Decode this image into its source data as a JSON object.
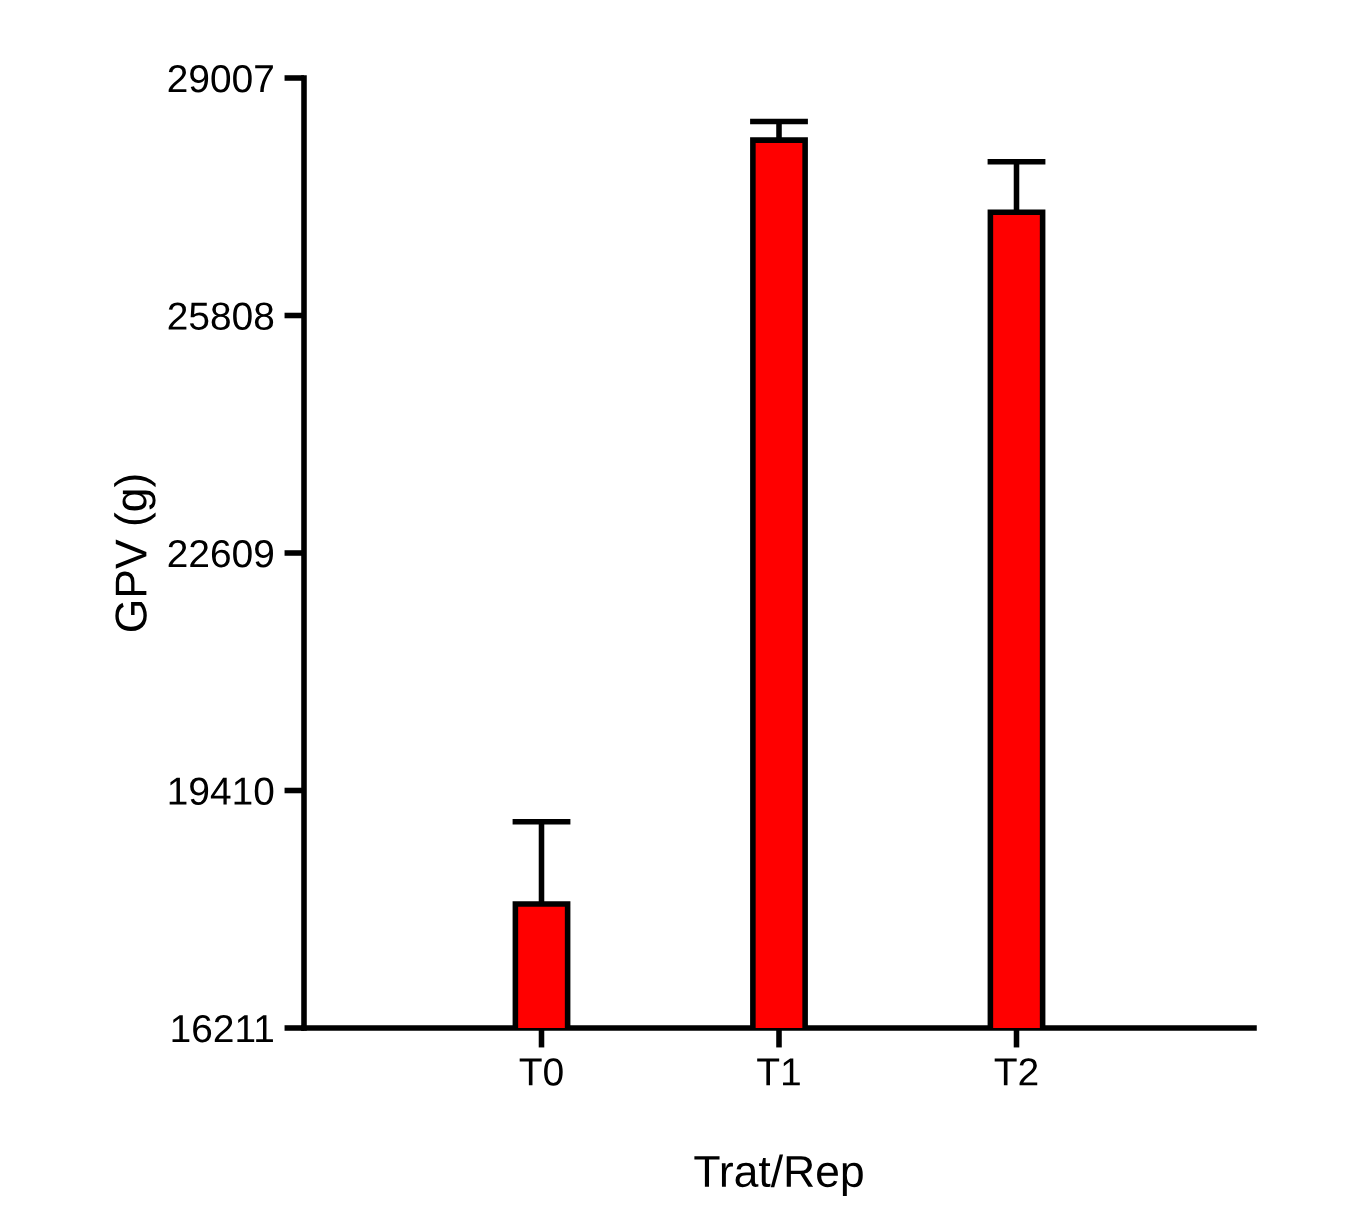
{
  "chart_data": {
    "type": "bar",
    "xlabel": "Trat/Rep",
    "ylabel": "GPV (g)",
    "categories": [
      "T0",
      "T1",
      "T2"
    ],
    "values": [
      17880,
      28170,
      27200
    ],
    "errors": [
      [
        17880,
        18990
      ],
      [
        28170,
        28420
      ],
      [
        27200,
        27880
      ]
    ],
    "color": "#ff0000",
    "ylim": [
      16211,
      29007
    ],
    "yticks": [
      16211,
      19410,
      22609,
      25808,
      29007
    ],
    "grid": false,
    "legend": false
  }
}
